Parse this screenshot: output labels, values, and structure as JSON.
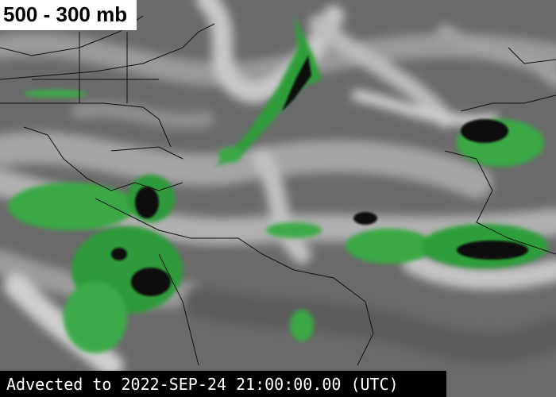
{
  "title": "500 - 300 mb",
  "caption": "Advected to 2022-SEP-24 21:00:00.00 (UTC)"
}
